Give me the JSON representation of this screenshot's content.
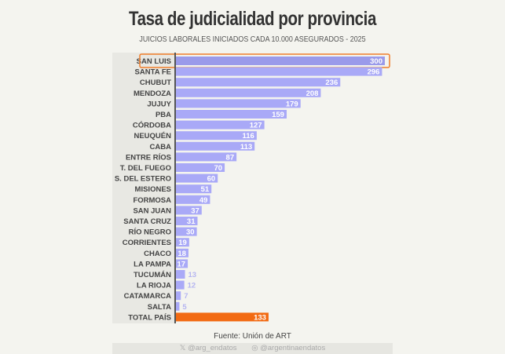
{
  "chart_data": {
    "type": "bar",
    "orientation": "horizontal",
    "title": "Tasa de judicialidad por provincia",
    "subtitle": "JUICIOS LABORALES INICIADOS CADA 10.000 ASEGURADOS - 2025",
    "categories": [
      "SAN LUIS",
      "SANTA FE",
      "CHUBUT",
      "MENDOZA",
      "JUJUY",
      "PBA",
      "CÓRDOBA",
      "NEUQUÉN",
      "CABA",
      "ENTRE RÍOS",
      "T. DEL FUEGO",
      "S. DEL ESTERO",
      "MISIONES",
      "FORMOSA",
      "SAN JUAN",
      "SANTA CRUZ",
      "RÍO NEGRO",
      "CORRIENTES",
      "CHACO",
      "LA PAMPA",
      "TUCUMÁN",
      "LA RIOJA",
      "CATAMARCA",
      "SALTA",
      "TOTAL PAÍS"
    ],
    "values": [
      300,
      296,
      236,
      208,
      179,
      159,
      127,
      116,
      113,
      87,
      70,
      60,
      51,
      49,
      37,
      31,
      30,
      19,
      18,
      17,
      13,
      12,
      7,
      5,
      133
    ],
    "highlight": "SAN LUIS",
    "colors": {
      "bar": "#a9a9f7",
      "highlight_bar": "#9a9aea",
      "total_bar": "#f26a12",
      "highlight_box": "#f07d2a"
    },
    "grid": false
  },
  "source": "Fuente: Unión de ART",
  "footer": {
    "twitter": "@arg_endatos",
    "instagram": "@argentinaendatos"
  }
}
